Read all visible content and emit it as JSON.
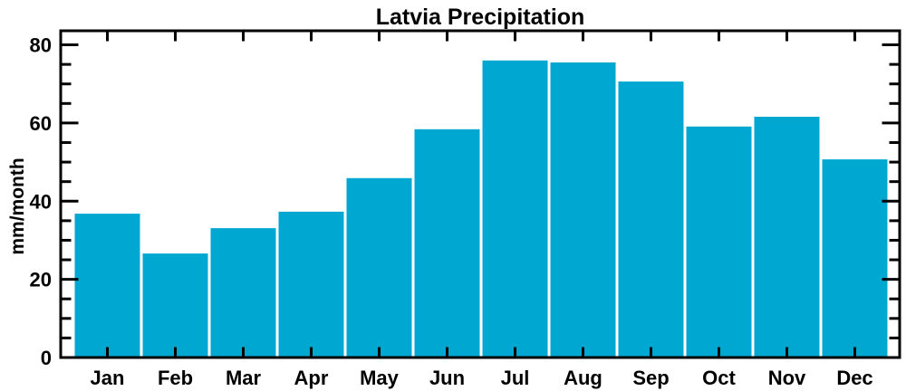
{
  "chart_data": {
    "type": "bar",
    "title": "Latvia Precipitation",
    "xlabel": "",
    "ylabel": "mm/month",
    "categories": [
      "Jan",
      "Feb",
      "Mar",
      "Apr",
      "May",
      "Jun",
      "Jul",
      "Aug",
      "Sep",
      "Oct",
      "Nov",
      "Dec"
    ],
    "values": [
      36.8,
      26.6,
      33.1,
      37.3,
      45.9,
      58.4,
      76.0,
      75.5,
      70.6,
      59.1,
      61.6,
      50.7
    ],
    "ylim": [
      0,
      83.6
    ],
    "yticks": [
      0,
      20,
      40,
      60,
      80
    ],
    "minor_tick_step": 5,
    "grid": false,
    "legend": null,
    "bar_color": "#00a7d0",
    "axis_color": "#000000",
    "background_color": "#ffffff"
  }
}
